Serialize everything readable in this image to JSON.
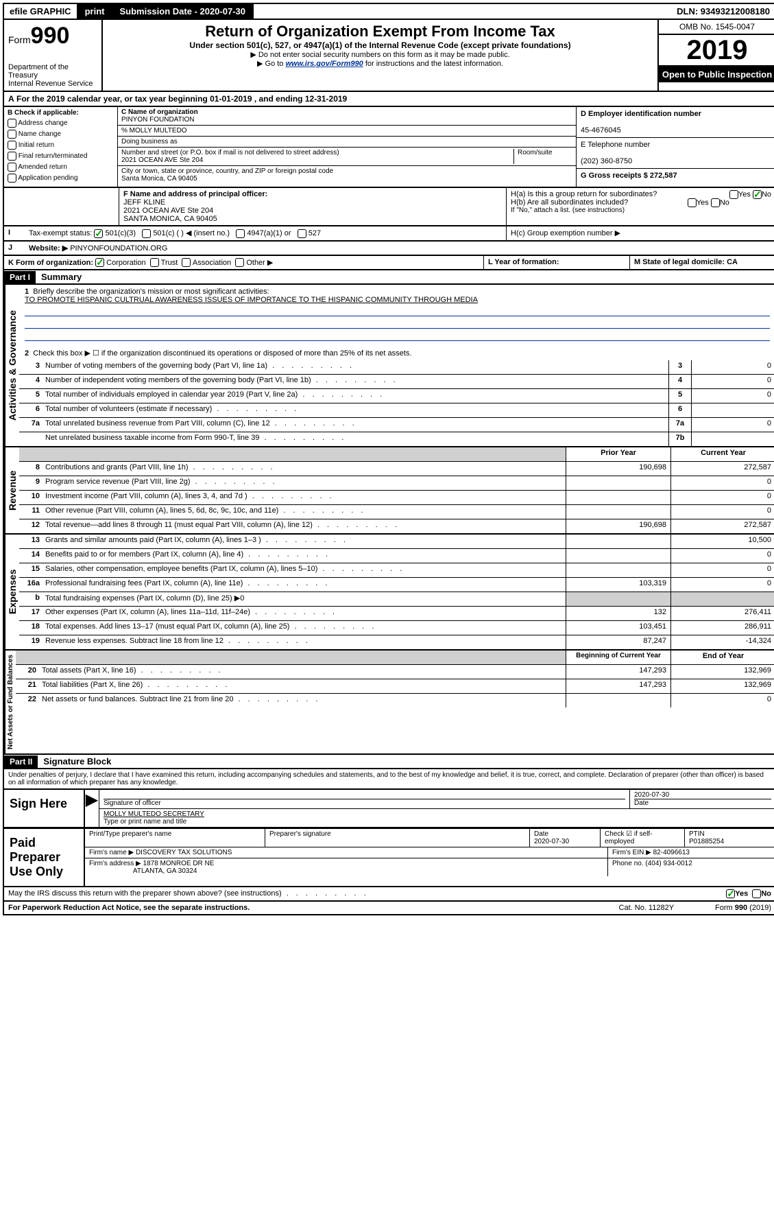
{
  "top_bar": {
    "efile": "efile GRAPHIC",
    "print": "print",
    "sub_label": "Submission Date - 2020-07-30",
    "dln": "DLN: 93493212008180"
  },
  "header": {
    "form_prefix": "Form",
    "form_num": "990",
    "dept": "Department of the Treasury",
    "irs": "Internal Revenue Service",
    "title": "Return of Organization Exempt From Income Tax",
    "subtitle": "Under section 501(c), 527, or 4947(a)(1) of the Internal Revenue Code (except private foundations)",
    "note1": "▶ Do not enter social security numbers on this form as it may be made public.",
    "note2_pre": "▶ Go to ",
    "note2_link": "www.irs.gov/Form990",
    "note2_post": " for instructions and the latest information.",
    "omb": "OMB No. 1545-0047",
    "year": "2019",
    "open": "Open to Public Inspection"
  },
  "period": "For the 2019 calendar year, or tax year beginning 01-01-2019   , and ending 12-31-2019",
  "box_b": {
    "label": "B Check if applicable:",
    "items": [
      "Address change",
      "Name change",
      "Initial return",
      "Final return/terminated",
      "Amended return",
      "Application pending"
    ]
  },
  "box_c": {
    "name_label": "C Name of organization",
    "name": "PINYON FOUNDATION",
    "care_of": "% MOLLY MULTEDO",
    "dba_label": "Doing business as",
    "addr_label": "Number and street (or P.O. box if mail is not delivered to street address)",
    "room_label": "Room/suite",
    "addr": "2021 OCEAN AVE Ste 204",
    "city_label": "City or town, state or province, country, and ZIP or foreign postal code",
    "city": "Santa Monica, CA  90405"
  },
  "box_d": {
    "label": "D Employer identification number",
    "val": "45-4676045"
  },
  "box_e": {
    "label": "E Telephone number",
    "val": "(202) 360-8750"
  },
  "box_g": {
    "label": "G Gross receipts $ 272,587"
  },
  "box_f": {
    "label": "F Name and address of principal officer:",
    "name": "JEFF KLINE",
    "addr1": "2021 OCEAN AVE Ste 204",
    "addr2": "SANTA MONICA, CA  90405"
  },
  "box_h": {
    "a": "H(a)  Is this a group return for subordinates?",
    "b": "H(b)  Are all subordinates included?",
    "note": "If \"No,\" attach a list. (see instructions)",
    "c": "H(c)  Group exemption number ▶",
    "yes": "Yes",
    "no": "No"
  },
  "box_i": {
    "label": "Tax-exempt status:",
    "opts": [
      "501(c)(3)",
      "501(c) (  ) ◀ (insert no.)",
      "4947(a)(1) or",
      "527"
    ]
  },
  "box_j": {
    "label": "Website: ▶",
    "val": "PINYONFOUNDATION.ORG"
  },
  "box_k": {
    "label": "K Form of organization:",
    "opts": [
      "Corporation",
      "Trust",
      "Association",
      "Other ▶"
    ]
  },
  "box_l": "L Year of formation:",
  "box_m": "M State of legal domicile: CA",
  "part1": {
    "header": "Part I",
    "title": "Summary",
    "l1": "Briefly describe the organization's mission or most significant activities:",
    "mission": "TO PROMOTE HISPANIC CULTRUAL AWARENESS ISSUES OF IMPORTANCE TO THE HISPANIC COMMUNITY THROUGH MEDIA",
    "l2": "Check this box ▶ ☐  if the organization discontinued its operations or disposed of more than 25% of its net assets.",
    "vert1": "Activities & Governance",
    "vert2": "Revenue",
    "vert3": "Expenses",
    "vert4": "Net Assets or Fund Balances",
    "rows_gov": [
      {
        "n": "3",
        "t": "Number of voting members of the governing body (Part VI, line 1a)",
        "b": "3",
        "v": "0"
      },
      {
        "n": "4",
        "t": "Number of independent voting members of the governing body (Part VI, line 1b)",
        "b": "4",
        "v": "0"
      },
      {
        "n": "5",
        "t": "Total number of individuals employed in calendar year 2019 (Part V, line 2a)",
        "b": "5",
        "v": "0"
      },
      {
        "n": "6",
        "t": "Total number of volunteers (estimate if necessary)",
        "b": "6",
        "v": ""
      },
      {
        "n": "7a",
        "t": "Total unrelated business revenue from Part VIII, column (C), line 12",
        "b": "7a",
        "v": "0"
      },
      {
        "n": "",
        "t": "Net unrelated business taxable income from Form 990-T, line 39",
        "b": "7b",
        "v": ""
      }
    ],
    "col_prior": "Prior Year",
    "col_current": "Current Year",
    "rows_rev": [
      {
        "n": "8",
        "t": "Contributions and grants (Part VIII, line 1h)",
        "p": "190,698",
        "c": "272,587"
      },
      {
        "n": "9",
        "t": "Program service revenue (Part VIII, line 2g)",
        "p": "",
        "c": "0"
      },
      {
        "n": "10",
        "t": "Investment income (Part VIII, column (A), lines 3, 4, and 7d )",
        "p": "",
        "c": "0"
      },
      {
        "n": "11",
        "t": "Other revenue (Part VIII, column (A), lines 5, 6d, 8c, 9c, 10c, and 11e)",
        "p": "",
        "c": "0"
      },
      {
        "n": "12",
        "t": "Total revenue—add lines 8 through 11 (must equal Part VIII, column (A), line 12)",
        "p": "190,698",
        "c": "272,587"
      }
    ],
    "rows_exp": [
      {
        "n": "13",
        "t": "Grants and similar amounts paid (Part IX, column (A), lines 1–3 )",
        "p": "",
        "c": "10,500"
      },
      {
        "n": "14",
        "t": "Benefits paid to or for members (Part IX, column (A), line 4)",
        "p": "",
        "c": "0"
      },
      {
        "n": "15",
        "t": "Salaries, other compensation, employee benefits (Part IX, column (A), lines 5–10)",
        "p": "",
        "c": "0"
      },
      {
        "n": "16a",
        "t": "Professional fundraising fees (Part IX, column (A), line 11e)",
        "p": "103,319",
        "c": "0"
      },
      {
        "n": "b",
        "t": "Total fundraising expenses (Part IX, column (D), line 25) ▶0",
        "p": "",
        "c": "",
        "grey": true
      },
      {
        "n": "17",
        "t": "Other expenses (Part IX, column (A), lines 11a–11d, 11f–24e)",
        "p": "132",
        "c": "276,411"
      },
      {
        "n": "18",
        "t": "Total expenses. Add lines 13–17 (must equal Part IX, column (A), line 25)",
        "p": "103,451",
        "c": "286,911"
      },
      {
        "n": "19",
        "t": "Revenue less expenses. Subtract line 18 from line 12",
        "p": "87,247",
        "c": "-14,324"
      }
    ],
    "col_begin": "Beginning of Current Year",
    "col_end": "End of Year",
    "rows_net": [
      {
        "n": "20",
        "t": "Total assets (Part X, line 16)",
        "p": "147,293",
        "c": "132,969"
      },
      {
        "n": "21",
        "t": "Total liabilities (Part X, line 26)",
        "p": "147,293",
        "c": "132,969"
      },
      {
        "n": "22",
        "t": "Net assets or fund balances. Subtract line 21 from line 20",
        "p": "",
        "c": "0"
      }
    ]
  },
  "part2": {
    "header": "Part II",
    "title": "Signature Block",
    "penalty": "Under penalties of perjury, I declare that I have examined this return, including accompanying schedules and statements, and to the best of my knowledge and belief, it is true, correct, and complete. Declaration of preparer (other than officer) is based on all information of which preparer has any knowledge.",
    "sign": "Sign Here",
    "sig_officer": "Signature of officer",
    "date1": "2020-07-30",
    "date_label": "Date",
    "officer_name": "MOLLY MULTEDO  SECRETARY",
    "type_name": "Type or print name and title",
    "paid": "Paid Preparer Use Only",
    "prep_name_label": "Print/Type preparer's name",
    "prep_sig_label": "Preparer's signature",
    "prep_date": "2020-07-30",
    "check_self": "Check ☑ if self-employed",
    "ptin_label": "PTIN",
    "ptin": "P01885254",
    "firm_name_label": "Firm's name    ▶",
    "firm_name": "DISCOVERY TAX SOLUTIONS",
    "firm_ein_label": "Firm's EIN ▶",
    "firm_ein": "82-4096613",
    "firm_addr_label": "Firm's address ▶",
    "firm_addr1": "1878 MONROE DR NE",
    "firm_addr2": "ATLANTA, GA  30324",
    "phone_label": "Phone no.",
    "phone": "(404) 934-0012",
    "discuss": "May the IRS discuss this return with the preparer shown above? (see instructions)",
    "yes": "Yes",
    "no": "No"
  },
  "footer": {
    "paperwork": "For Paperwork Reduction Act Notice, see the separate instructions.",
    "cat": "Cat. No. 11282Y",
    "form": "Form 990 (2019)"
  }
}
